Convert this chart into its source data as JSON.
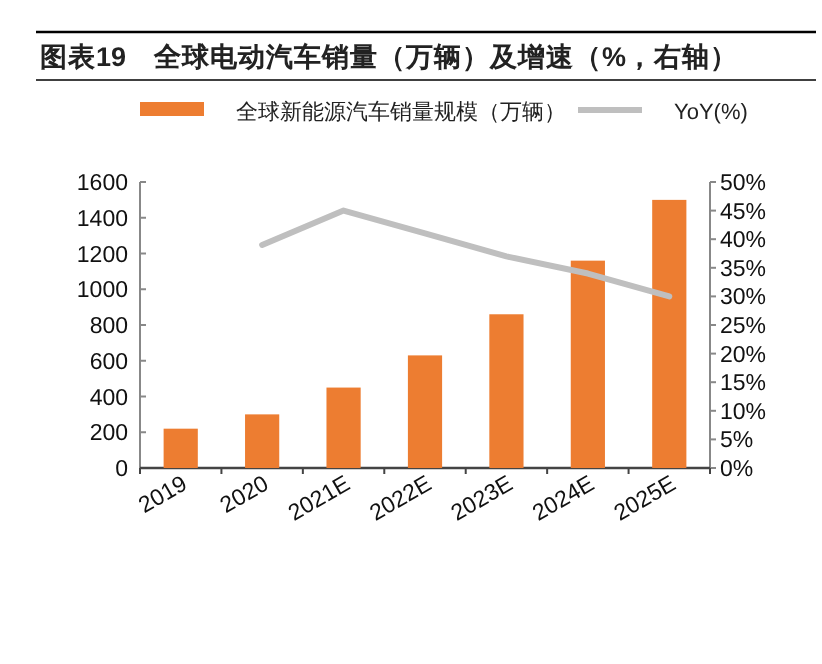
{
  "chart_data": {
    "type": "bar",
    "title": "图表19　全球电动汽车销量（万辆）及增速（%，右轴）",
    "categories": [
      "2019",
      "2020",
      "2021E",
      "2022E",
      "2023E",
      "2024E",
      "2025E"
    ],
    "series": [
      {
        "name": "全球新能源汽车销量规模（万辆）",
        "color": "#ed7d31",
        "values": [
          220,
          300,
          450,
          630,
          860,
          1160,
          1500
        ]
      },
      {
        "name": "YoY(%)",
        "type": "line",
        "axis": "y2",
        "color": "#bfbfbf",
        "values": [
          null,
          39,
          45,
          41,
          37,
          34,
          30
        ]
      }
    ],
    "ylim": [
      0,
      1600
    ],
    "yticks": [
      0,
      200,
      400,
      600,
      800,
      1000,
      1200,
      1400,
      1600
    ],
    "y2lim": [
      0,
      50
    ],
    "y2ticks": [
      {
        "value": 0,
        "label": "0%"
      },
      {
        "value": 5,
        "label": "5%"
      },
      {
        "value": 10,
        "label": "10%"
      },
      {
        "value": 15,
        "label": "15%"
      },
      {
        "value": 20,
        "label": "20%"
      },
      {
        "value": 25,
        "label": "25%"
      },
      {
        "value": 30,
        "label": "30%"
      },
      {
        "value": 35,
        "label": "35%"
      },
      {
        "value": 40,
        "label": "40%"
      },
      {
        "value": 45,
        "label": "45%"
      },
      {
        "value": 50,
        "label": "50%"
      }
    ],
    "legend": "top",
    "grid": false,
    "marker": "none"
  }
}
